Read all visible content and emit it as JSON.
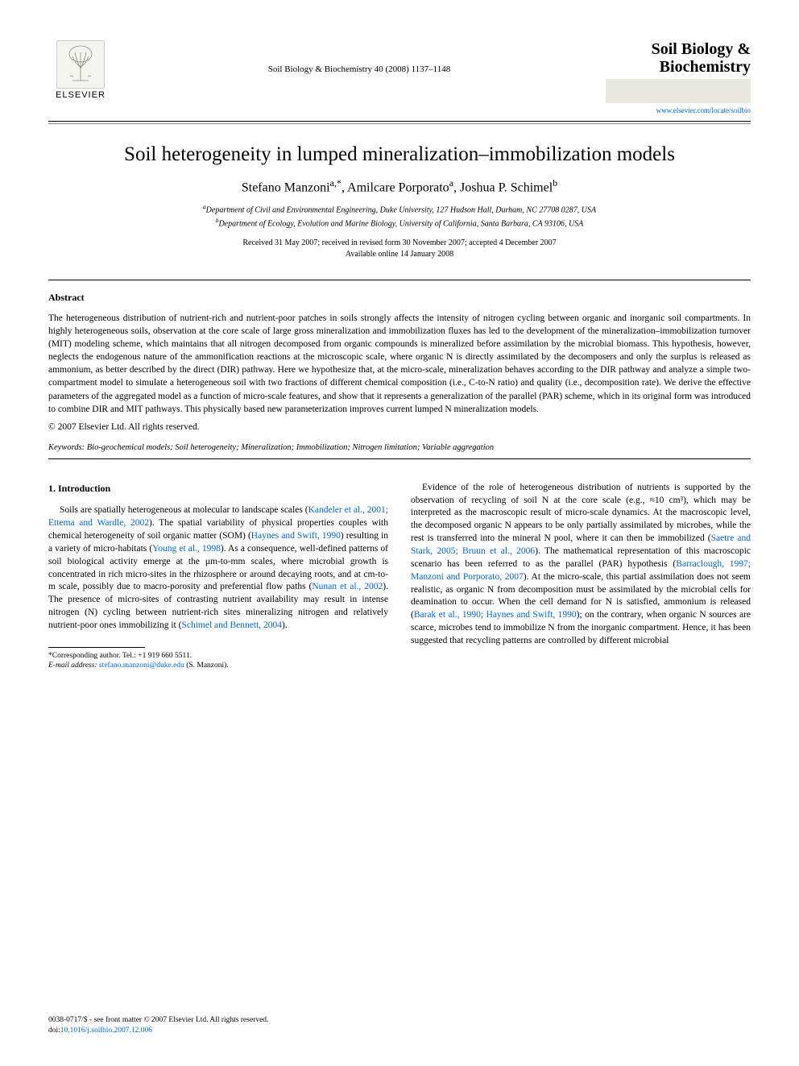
{
  "header": {
    "publisher": "ELSEVIER",
    "citation": "Soil Biology & Biochemistry 40 (2008) 1137–1148",
    "journal_name_1": "Soil Biology &",
    "journal_name_2": "Biochemistry",
    "journal_url": "www.elsevier.com/locate/soilbio"
  },
  "title": "Soil heterogeneity in lumped mineralization–immobilization models",
  "authors_html": "Stefano Manzoni<sup>a,*</sup>, Amilcare Porporato<sup>a</sup>, Joshua P. Schimel<sup>b</sup>",
  "affiliations": {
    "a": "Department of Civil and Environmental Engineering, Duke University, 127 Hudson Hall, Durham, NC 27708 0287, USA",
    "b": "Department of Ecology, Evolution and Marine Biology, University of California, Santa Barbara, CA 93106, USA"
  },
  "dates": {
    "line1": "Received 31 May 2007; received in revised form 30 November 2007; accepted 4 December 2007",
    "line2": "Available online 14 January 2008"
  },
  "abstract": {
    "label": "Abstract",
    "text": "The heterogeneous distribution of nutrient-rich and nutrient-poor patches in soils strongly affects the intensity of nitrogen cycling between organic and inorganic soil compartments. In highly heterogeneous soils, observation at the core scale of large gross mineralization and immobilization fluxes has led to the development of the mineralization–immobilization turnover (MIT) modeling scheme, which maintains that all nitrogen decomposed from organic compounds is mineralized before assimilation by the microbial biomass. This hypothesis, however, neglects the endogenous nature of the ammonification reactions at the microscopic scale, where organic N is directly assimilated by the decomposers and only the surplus is released as ammonium, as better described by the direct (DIR) pathway. Here we hypothesize that, at the micro-scale, mineralization behaves according to the DIR pathway and analyze a simple two-compartment model to simulate a heterogeneous soil with two fractions of different chemical composition (i.e., C-to-N ratio) and quality (i.e., decomposition rate). We derive the effective parameters of the aggregated model as a function of micro-scale features, and show that it represents a generalization of the parallel (PAR) scheme, which in its original form was introduced to combine DIR and MIT pathways. This physically based new parameterization improves current lumped N mineralization models.",
    "copyright": "© 2007 Elsevier Ltd. All rights reserved."
  },
  "keywords": {
    "label": "Keywords:",
    "text": "Bio-geochemical models; Soil heterogeneity; Mineralization; Immobilization; Nitrogen limitation; Variable aggregation"
  },
  "col_left": {
    "heading": "1. Introduction",
    "p1a": "Soils are spatially heterogeneous at molecular to landscape scales (",
    "ref1": "Kandeler et al., 2001; Ettema and Wardle, 2002",
    "p1b": "). The spatial variability of physical properties couples with chemical heterogeneity of soil organic matter (SOM) (",
    "ref2": "Haynes and Swift, 1990",
    "p1c": ") resulting in a variety of micro-habitats (",
    "ref3": "Young et al., 1998",
    "p1d": "). As a consequence, well-defined patterns of soil biological activity emerge at the μm-to-mm scales, where microbial growth is concentrated in rich micro-sites in the rhizosphere or around decaying roots, and at cm-to-m scale, possibly due to macro-porosity and preferential flow paths (",
    "ref4": "Nunan et al., 2002",
    "p1e": "). The presence of micro-sites of contrasting nutrient availability may result in intense nitrogen (N) cycling between nutrient-rich sites mineralizing nitrogen and relatively nutrient-poor ones immobilizing it (",
    "ref5": "Schimel and Bennett, 2004",
    "p1f": ")."
  },
  "col_right": {
    "p1a": "Evidence of the role of heterogeneous distribution of nutrients is supported by the observation of recycling of soil N at the core scale (e.g., ≈10 cm³), which may be interpreted as the macroscopic result of micro-scale dynamics. At the macroscopic level, the decomposed organic N appears to be only partially assimilated by microbes, while the rest is transferred into the mineral N pool, where it can then be immobilized (",
    "ref1": "Saetre and Stark, 2005; Bruun et al., 2006",
    "p1b": "). The mathematical representation of this macroscopic scenario has been referred to as the parallel (PAR) hypothesis (",
    "ref2": "Barraclough, 1997; Manzoni and Porporato, 2007",
    "p1c": "). At the micro-scale, this partial assimilation does not seem realistic, as organic N from decomposition must be assimilated by the microbial cells for deamination to occur. When the cell demand for N is satisfied, ammonium is released (",
    "ref3": "Barak et al., 1990; Haynes and Swift, 1990",
    "p1d": "); on the contrary, when organic N sources are scarce, microbes tend to immobilize N from the inorganic compartment. Hence, it has been suggested that recycling patterns are controlled by different microbial"
  },
  "footnote": {
    "corr": "*Corresponding author. Tel.: +1 919 660 5511.",
    "email_label": "E-mail address:",
    "email": "stefano.manzoni@duke.edu",
    "email_name": "(S. Manzoni)."
  },
  "footer": {
    "line1": "0038-0717/$ - see front matter © 2007 Elsevier Ltd. All rights reserved.",
    "doi_label": "doi:",
    "doi": "10.1016/j.soilbio.2007.12.006"
  },
  "colors": {
    "link": "#0066cc",
    "text": "#000000",
    "bg": "#ffffff"
  }
}
